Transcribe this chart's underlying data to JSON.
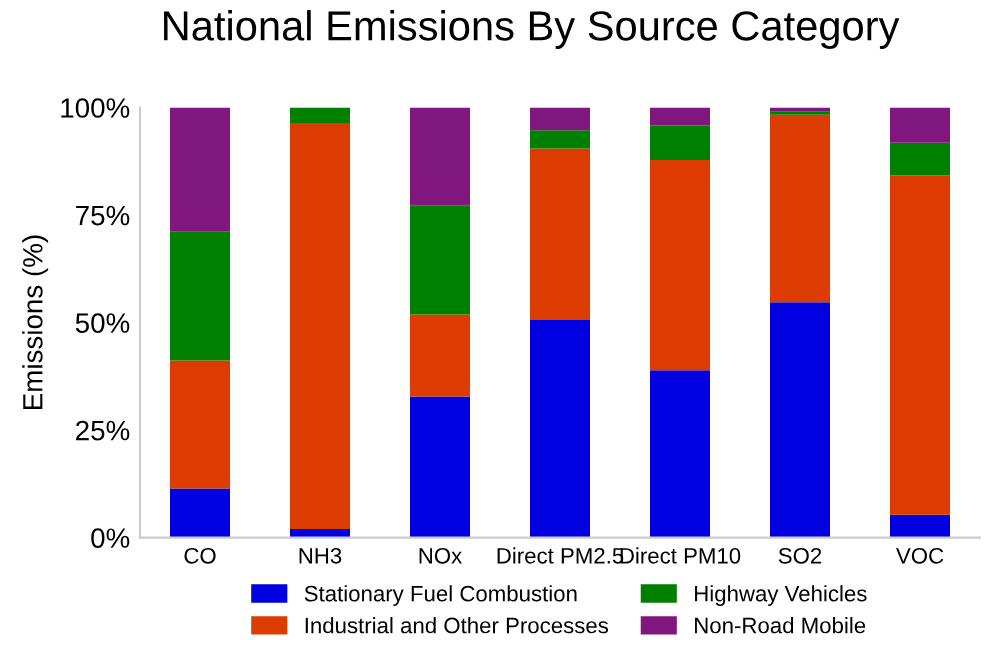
{
  "chart_data": {
    "type": "bar",
    "title": "National Emissions By Source Category",
    "ylabel": "Emissions (%)",
    "stacked": true,
    "categories": [
      "CO",
      "NH3",
      "NOx",
      "Direct PM2.5",
      "Direct PM10",
      "SO2",
      "VOC"
    ],
    "series": [
      {
        "name": "Stationary Fuel Combustion",
        "color": "#0000e0",
        "values": [
          11.4,
          2.0,
          32.8,
          50.6,
          38.9,
          54.7,
          5.3
        ]
      },
      {
        "name": "Industrial and Other Processes",
        "color": "#dd3c00",
        "values": [
          29.8,
          94.4,
          19.1,
          39.9,
          48.9,
          43.6,
          78.9
        ]
      },
      {
        "name": "Highway Vehicles",
        "color": "#008000",
        "values": [
          29.9,
          3.6,
          25.4,
          4.2,
          8.0,
          0.7,
          7.6
        ]
      },
      {
        "name": "Non-Road Mobile",
        "color": "#80177f",
        "values": [
          28.9,
          0.0,
          22.7,
          5.3,
          4.2,
          1.0,
          8.2
        ]
      }
    ],
    "ylim": [
      0,
      100
    ],
    "yticks": [
      {
        "value": 0,
        "label": "0%"
      },
      {
        "value": 25,
        "label": "25%"
      },
      {
        "value": 50,
        "label": "50%"
      },
      {
        "value": 75,
        "label": "75%"
      },
      {
        "value": 100,
        "label": "100%"
      }
    ],
    "grid": false,
    "legend": "bottom"
  }
}
